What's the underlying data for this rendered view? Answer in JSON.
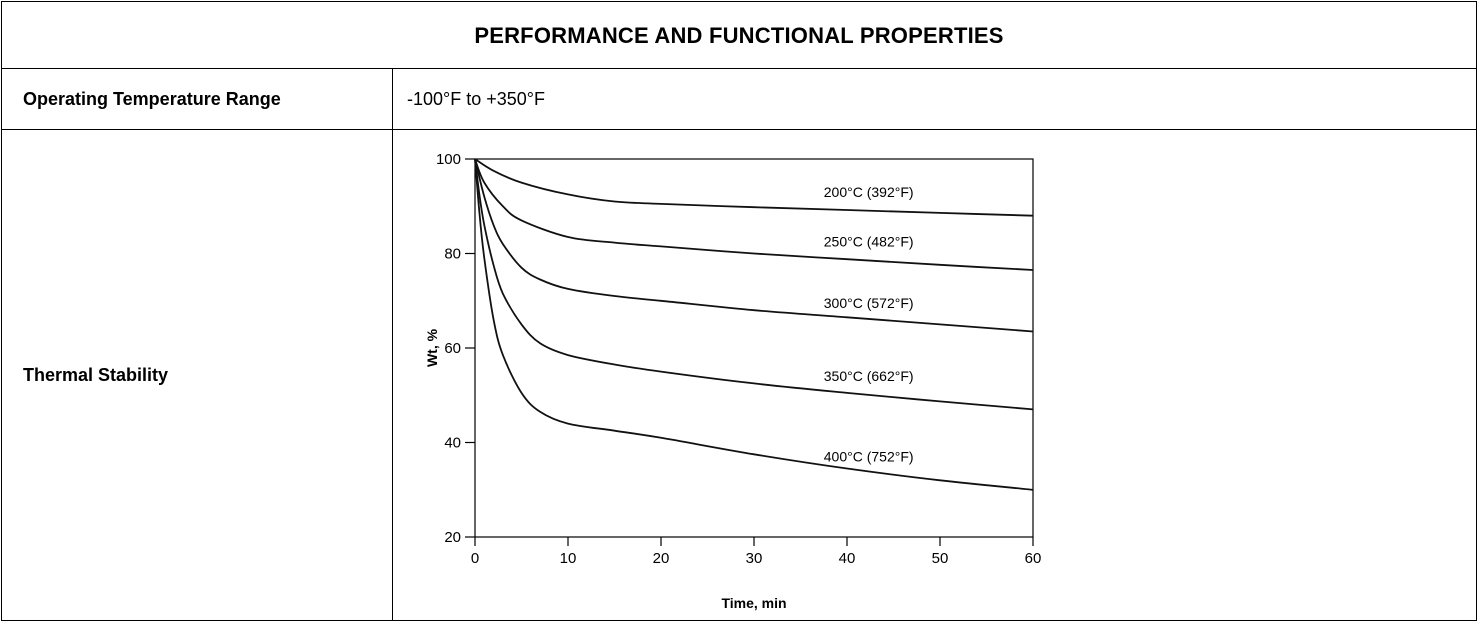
{
  "title": "PERFORMANCE AND FUNCTIONAL PROPERTIES",
  "rows": [
    {
      "label": "Operating Temperature Range",
      "value": "-100°F to +350°F"
    },
    {
      "label": "Thermal Stability"
    }
  ],
  "chart_data": {
    "type": "line",
    "xlabel": "Time, min",
    "ylabel": "Wt, %",
    "xlim": [
      0,
      60
    ],
    "ylim": [
      20,
      100
    ],
    "xticks": [
      0,
      10,
      20,
      30,
      40,
      50,
      60
    ],
    "yticks": [
      20,
      40,
      60,
      80,
      100
    ],
    "grid": false,
    "series": [
      {
        "name": "200°C (392°F)",
        "x": [
          0,
          2,
          5,
          10,
          15,
          20,
          30,
          40,
          50,
          60
        ],
        "y": [
          100,
          97.5,
          95,
          92.5,
          91,
          90.5,
          89.8,
          89.2,
          88.6,
          88
        ]
      },
      {
        "name": "250°C (482°F)",
        "x": [
          0,
          1,
          3,
          5,
          10,
          15,
          20,
          30,
          40,
          50,
          60
        ],
        "y": [
          100,
          95,
          90,
          87,
          83.5,
          82.3,
          81.5,
          80,
          78.8,
          77.6,
          76.5
        ]
      },
      {
        "name": "300°C (572°F)",
        "x": [
          0,
          1,
          2,
          3,
          5,
          7,
          10,
          15,
          20,
          30,
          40,
          50,
          60
        ],
        "y": [
          100,
          92,
          86,
          82,
          77,
          74.5,
          72.5,
          71,
          70,
          68,
          66.5,
          65,
          63.5
        ]
      },
      {
        "name": "350°C (662°F)",
        "x": [
          0,
          0.5,
          1,
          2,
          3,
          5,
          7,
          10,
          15,
          20,
          30,
          40,
          50,
          60
        ],
        "y": [
          100,
          92,
          86,
          77.5,
          71.5,
          65,
          61,
          58.5,
          56.5,
          55,
          52.5,
          50.5,
          48.7,
          47
        ]
      },
      {
        "name": "400°C (752°F)",
        "x": [
          0,
          0.5,
          1,
          2,
          3,
          5,
          7,
          10,
          15,
          20,
          30,
          40,
          50,
          60
        ],
        "y": [
          100,
          88,
          79,
          66,
          58.5,
          50.5,
          46.5,
          44,
          42.5,
          41,
          37.5,
          34.5,
          32,
          30
        ]
      }
    ],
    "annotations": [
      {
        "text": "200°C (392°F)",
        "x": 37.5,
        "y": 92
      },
      {
        "text": "250°C (482°F)",
        "x": 37.5,
        "y": 81.5
      },
      {
        "text": "300°C (572°F)",
        "x": 37.5,
        "y": 68.5
      },
      {
        "text": "350°C (662°F)",
        "x": 37.5,
        "y": 53
      },
      {
        "text": "400°C (752°F)",
        "x": 37.5,
        "y": 36
      }
    ]
  }
}
